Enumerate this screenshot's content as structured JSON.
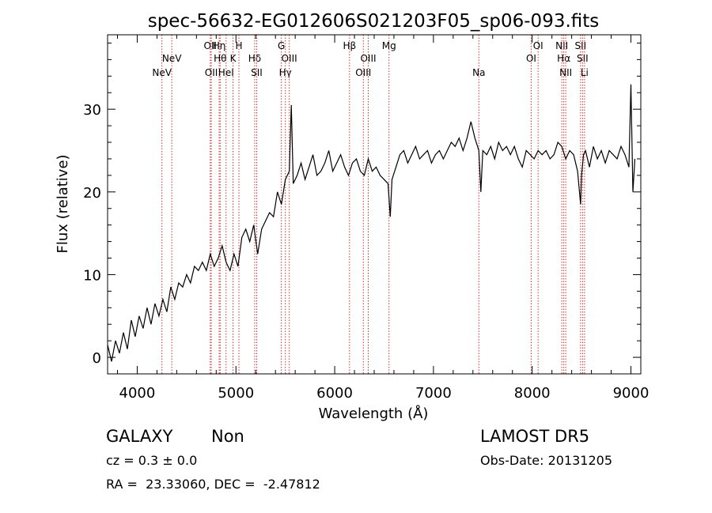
{
  "chart_data": {
    "type": "line",
    "title": "spec-56632-EG012606S021203F05_sp06-093.fits",
    "xlabel": "Wavelength (Å)",
    "ylabel": "Flux (relative)",
    "xlim": [
      3700,
      9100
    ],
    "ylim": [
      -2,
      39
    ],
    "xticks": [
      4000,
      5000,
      6000,
      7000,
      8000,
      9000
    ],
    "yticks": [
      0,
      10,
      20,
      30
    ],
    "grid": false,
    "line_color": "#000000",
    "marker_color": "#cc3333",
    "series": [
      {
        "x": [
          3700,
          3740,
          3780,
          3820,
          3860,
          3900,
          3940,
          3980,
          4020,
          4060,
          4100,
          4140,
          4180,
          4220,
          4260,
          4300,
          4340,
          4380,
          4420,
          4460,
          4500,
          4540,
          4580,
          4620,
          4660,
          4700,
          4740,
          4780,
          4820,
          4860,
          4900,
          4940,
          4980,
          5020,
          5060,
          5100,
          5140,
          5180,
          5220,
          5260,
          5300,
          5340,
          5380,
          5420,
          5460,
          5500,
          5540,
          5560,
          5580,
          5620,
          5660,
          5700,
          5740,
          5780,
          5820,
          5860,
          5900,
          5940,
          5980,
          6020,
          6060,
          6100,
          6140,
          6180,
          6220,
          6260,
          6300,
          6340,
          6380,
          6420,
          6460,
          6500,
          6540,
          6563,
          6580,
          6620,
          6660,
          6700,
          6740,
          6780,
          6820,
          6860,
          6900,
          6940,
          6980,
          7020,
          7060,
          7100,
          7140,
          7180,
          7220,
          7260,
          7300,
          7340,
          7380,
          7420,
          7460,
          7480,
          7500,
          7540,
          7580,
          7620,
          7660,
          7700,
          7740,
          7780,
          7820,
          7860,
          7900,
          7940,
          7980,
          8020,
          8060,
          8100,
          8140,
          8180,
          8220,
          8260,
          8300,
          8340,
          8380,
          8420,
          8460,
          8490,
          8500,
          8520,
          8540,
          8580,
          8620,
          8660,
          8700,
          8740,
          8780,
          8820,
          8860,
          8900,
          8940,
          8980,
          9000,
          9020,
          9040
        ],
        "values": [
          1.5,
          -0.5,
          2.0,
          0.5,
          3.0,
          1.0,
          4.5,
          2.5,
          5.0,
          3.5,
          6.0,
          4.0,
          6.5,
          5.0,
          7.0,
          5.5,
          8.5,
          7.0,
          9.0,
          8.5,
          10.0,
          9.0,
          11.0,
          10.5,
          11.5,
          10.5,
          12.5,
          11.0,
          12.0,
          13.5,
          11.5,
          10.5,
          12.5,
          11.0,
          14.5,
          15.5,
          14.0,
          16.0,
          12.5,
          15.5,
          16.5,
          17.5,
          17.0,
          20.0,
          18.5,
          21.5,
          22.5,
          30.5,
          21.0,
          22.0,
          23.5,
          21.5,
          23.0,
          24.5,
          22.0,
          22.5,
          23.5,
          25.0,
          22.5,
          23.5,
          24.5,
          23.0,
          22.0,
          23.5,
          24.0,
          22.5,
          22.0,
          24.0,
          22.5,
          23.0,
          22.0,
          21.5,
          21.0,
          17.0,
          21.5,
          23.0,
          24.5,
          25.0,
          23.5,
          24.5,
          25.5,
          24.0,
          24.5,
          25.0,
          23.5,
          24.5,
          25.0,
          24.0,
          25.0,
          26.0,
          25.5,
          26.5,
          25.0,
          26.5,
          28.5,
          26.5,
          25.0,
          20.0,
          25.0,
          24.5,
          25.5,
          24.0,
          26.0,
          25.0,
          25.5,
          24.5,
          25.5,
          24.0,
          23.0,
          25.0,
          24.5,
          24.0,
          25.0,
          24.5,
          25.0,
          24.0,
          24.5,
          26.0,
          25.5,
          24.0,
          25.0,
          24.5,
          22.5,
          18.5,
          22.0,
          24.5,
          25.0,
          23.0,
          25.5,
          24.0,
          25.0,
          23.5,
          25.0,
          24.5,
          24.0,
          25.5,
          24.5,
          23.0,
          33.0,
          20.0,
          24.0
        ]
      }
    ],
    "line_markers": [
      {
        "wavelength": 4250,
        "label": "NeV",
        "label_row": 3
      },
      {
        "wavelength": 4350,
        "label": "NeV",
        "label_row": 2
      },
      {
        "wavelength": 4740,
        "label": "OII",
        "label_row": 1
      },
      {
        "wavelength": 4750,
        "label": "OII",
        "label_row": 3
      },
      {
        "wavelength": 4830,
        "label": "Hη",
        "label_row": 1
      },
      {
        "wavelength": 4840,
        "label": "Hθ",
        "label_row": 2
      },
      {
        "wavelength": 4900,
        "label": "HeI",
        "label_row": 3
      },
      {
        "wavelength": 4970,
        "label": "K",
        "label_row": 2
      },
      {
        "wavelength": 5030,
        "label": "H",
        "label_row": 1
      },
      {
        "wavelength": 5190,
        "label": "Hδ",
        "label_row": 2
      },
      {
        "wavelength": 5210,
        "label": "SII",
        "label_row": 3
      },
      {
        "wavelength": 5460,
        "label": "G",
        "label_row": 1
      },
      {
        "wavelength": 5500,
        "label": "Hγ",
        "label_row": 3
      },
      {
        "wavelength": 5540,
        "label": "OIII",
        "label_row": 2
      },
      {
        "wavelength": 6150,
        "label": "Hβ",
        "label_row": 1
      },
      {
        "wavelength": 6290,
        "label": "OIII",
        "label_row": 3
      },
      {
        "wavelength": 6340,
        "label": "OIII",
        "label_row": 2
      },
      {
        "wavelength": 6550,
        "label": "Mg",
        "label_row": 1
      },
      {
        "wavelength": 7460,
        "label": "Na",
        "label_row": 3
      },
      {
        "wavelength": 7990,
        "label": "OI",
        "label_row": 2
      },
      {
        "wavelength": 8060,
        "label": "OI",
        "label_row": 1
      },
      {
        "wavelength": 8300,
        "label": "NII",
        "label_row": 1
      },
      {
        "wavelength": 8320,
        "label": "Hα",
        "label_row": 2
      },
      {
        "wavelength": 8340,
        "label": "NII",
        "label_row": 3
      },
      {
        "wavelength": 8490,
        "label": "SII",
        "label_row": 1
      },
      {
        "wavelength": 8510,
        "label": "SII",
        "label_row": 2
      },
      {
        "wavelength": 8530,
        "label": "Li",
        "label_row": 3
      }
    ]
  },
  "info": {
    "class_label": "GALAXY",
    "subclass_label": "Non",
    "survey_label": "LAMOST DR5",
    "cz_text": "cz = 0.3 ± 0.0",
    "obs_date_text": "Obs-Date: 20131205",
    "coords_text": "RA =  23.33060, DEC =  -2.47812"
  }
}
